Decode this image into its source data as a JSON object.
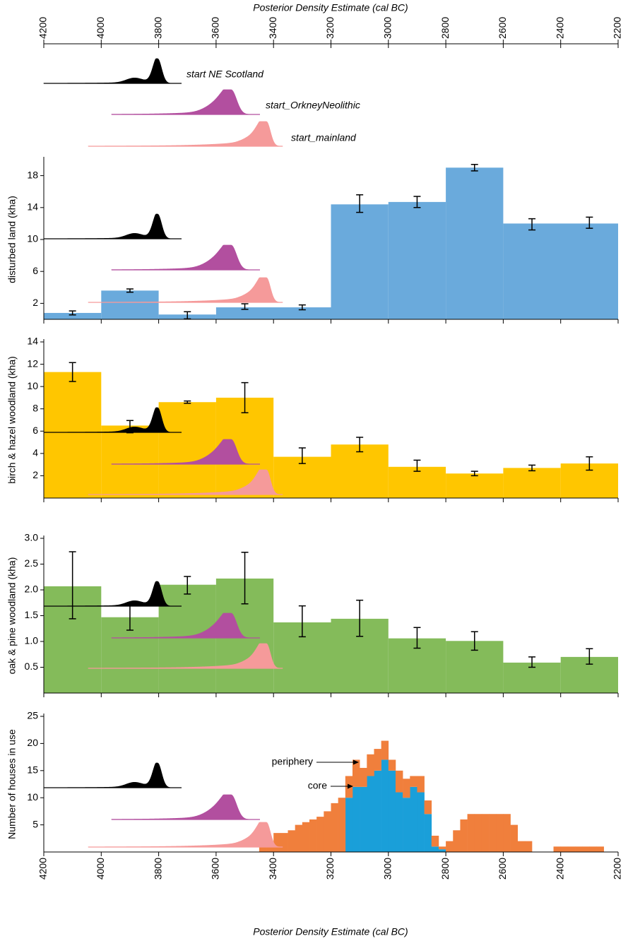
{
  "chart_data": [
    {
      "type": "density",
      "xlabel": "Posterior Density Estimate (cal BC)",
      "xlim": [
        4200,
        2200
      ],
      "xticks": [
        4200,
        4000,
        3800,
        3600,
        3400,
        3200,
        3000,
        2800,
        2600,
        2400,
        2200
      ],
      "series": [
        {
          "name": "start NE Scotland",
          "color": "#000000"
        },
        {
          "name": "start_OrkneyNeolithic",
          "color": "#b24f9f"
        },
        {
          "name": "start_mainland",
          "color": "#f59a9a"
        }
      ]
    },
    {
      "type": "histogram",
      "ylabel": "disturbed land (kha)",
      "xlim": [
        4200,
        2200
      ],
      "ylim": [
        0,
        20
      ],
      "yticks": [
        2,
        6,
        10,
        14,
        18
      ],
      "color": "#6aaadc",
      "bins": [
        4200,
        4000,
        3800,
        3600,
        3200,
        3000,
        2800,
        2600,
        2200
      ],
      "values": [
        0.8,
        3.6,
        0.6,
        1.5,
        14.4,
        14.7,
        19,
        12
      ],
      "error_bars": {
        "x": [
          4100,
          3900,
          3700,
          3500,
          3300,
          3100,
          2900,
          2700,
          2500,
          2300
        ],
        "values": [
          0.8,
          3.6,
          0.5,
          1.6,
          1.5,
          14.5,
          14.7,
          19,
          11.9,
          12.1
        ],
        "errors": [
          0.25,
          0.2,
          0.45,
          0.35,
          0.3,
          1.1,
          0.7,
          0.4,
          0.7,
          0.7
        ]
      }
    },
    {
      "type": "histogram",
      "ylabel": "birch & hazel woodland (kha)",
      "xlim": [
        4200,
        2200
      ],
      "ylim": [
        0,
        14
      ],
      "yticks": [
        2,
        4,
        6,
        8,
        10,
        12,
        14
      ],
      "color": "#ffc600",
      "bins": [
        4200,
        4000,
        3800,
        3600,
        3400,
        3200,
        3000,
        2800,
        2600,
        2400,
        2200
      ],
      "values": [
        11.3,
        6.5,
        8.6,
        9.0,
        3.7,
        4.8,
        2.8,
        2.2,
        2.7,
        3.1
      ],
      "error_bars": {
        "x": [
          4100,
          3900,
          3700,
          3500,
          3300,
          3100,
          2900,
          2700,
          2500,
          2300
        ],
        "values": [
          11.3,
          6.4,
          8.6,
          9.0,
          3.8,
          4.8,
          2.9,
          2.2,
          2.7,
          3.1
        ],
        "errors": [
          0.85,
          0.55,
          0.1,
          1.35,
          0.7,
          0.65,
          0.5,
          0.2,
          0.25,
          0.6
        ]
      }
    },
    {
      "type": "histogram",
      "ylabel": "oak & pine woodland (kha)",
      "xlim": [
        4200,
        2200
      ],
      "ylim": [
        0,
        3
      ],
      "yticks": [
        0.5,
        {
          "value": 1,
          "label": "1.0"
        },
        1.5,
        {
          "value": 2,
          "label": "2.0"
        },
        2.5,
        {
          "value": 3,
          "label": "3.0"
        }
      ],
      "color": "#84bb5a",
      "bins": [
        4200,
        4000,
        3800,
        3600,
        3400,
        3200,
        3000,
        2800,
        2600,
        2400,
        2200
      ],
      "values": [
        2.07,
        1.47,
        2.1,
        2.22,
        1.37,
        1.44,
        1.06,
        1.01,
        0.59,
        0.7
      ],
      "error_bars": {
        "x": [
          4100,
          3900,
          3700,
          3500,
          3300,
          3100,
          2900,
          2700,
          2500,
          2300
        ],
        "values": [
          2.09,
          1.47,
          2.09,
          2.23,
          1.39,
          1.45,
          1.07,
          1.01,
          0.6,
          0.71
        ],
        "errors": [
          0.65,
          0.25,
          0.17,
          0.5,
          0.3,
          0.35,
          0.2,
          0.18,
          0.1,
          0.15
        ]
      }
    },
    {
      "type": "stacked_histogram",
      "ylabel": "Number of houses in use",
      "xlabel": "Posterior Density Estimate (cal BC)",
      "xlim": [
        4200,
        2200
      ],
      "xticks": [
        4200,
        4000,
        3800,
        3600,
        3400,
        3200,
        3000,
        2800,
        2600,
        2400,
        2200
      ],
      "ylim": [
        0,
        25
      ],
      "yticks": [
        5,
        10,
        15,
        20,
        25
      ],
      "bins": [
        3450,
        3425,
        3400,
        3375,
        3350,
        3325,
        3300,
        3275,
        3250,
        3225,
        3200,
        3175,
        3150,
        3125,
        3100,
        3075,
        3050,
        3025,
        3000,
        2975,
        2950,
        2925,
        2900,
        2875,
        2850,
        2825,
        2800,
        2775,
        2750,
        2725,
        2700,
        2675,
        2650,
        2625,
        2600,
        2575,
        2550,
        2525,
        2500,
        2475,
        2450,
        2425,
        2400,
        2375,
        2350,
        2325,
        2300,
        2275,
        2250
      ],
      "series": [
        {
          "name": "core",
          "color": "#1a9fd9",
          "values": [
            0,
            0,
            0,
            0,
            0,
            0,
            0,
            0,
            0,
            0,
            0,
            0,
            10,
            12,
            12,
            14,
            15,
            17,
            15,
            11,
            10,
            12,
            11,
            7,
            1,
            0.5,
            0,
            0,
            0,
            0,
            0,
            0,
            0,
            0,
            0,
            0,
            0,
            0,
            0,
            0,
            0,
            0,
            0,
            0,
            0,
            0,
            0,
            0
          ]
        },
        {
          "name": "periphery",
          "color": "#f07f3c",
          "values": [
            1,
            1,
            3.5,
            3.5,
            4,
            5,
            5.5,
            6,
            6.5,
            7.5,
            9,
            10,
            4,
            5,
            3.5,
            4,
            4,
            3.5,
            2,
            4,
            3.5,
            2,
            3,
            2.5,
            2,
            0.5,
            2,
            4,
            6,
            7,
            7,
            7,
            7,
            7,
            7,
            5,
            2,
            2,
            0,
            0,
            0,
            1,
            1,
            1,
            1,
            1,
            1,
            1
          ]
        }
      ]
    }
  ]
}
